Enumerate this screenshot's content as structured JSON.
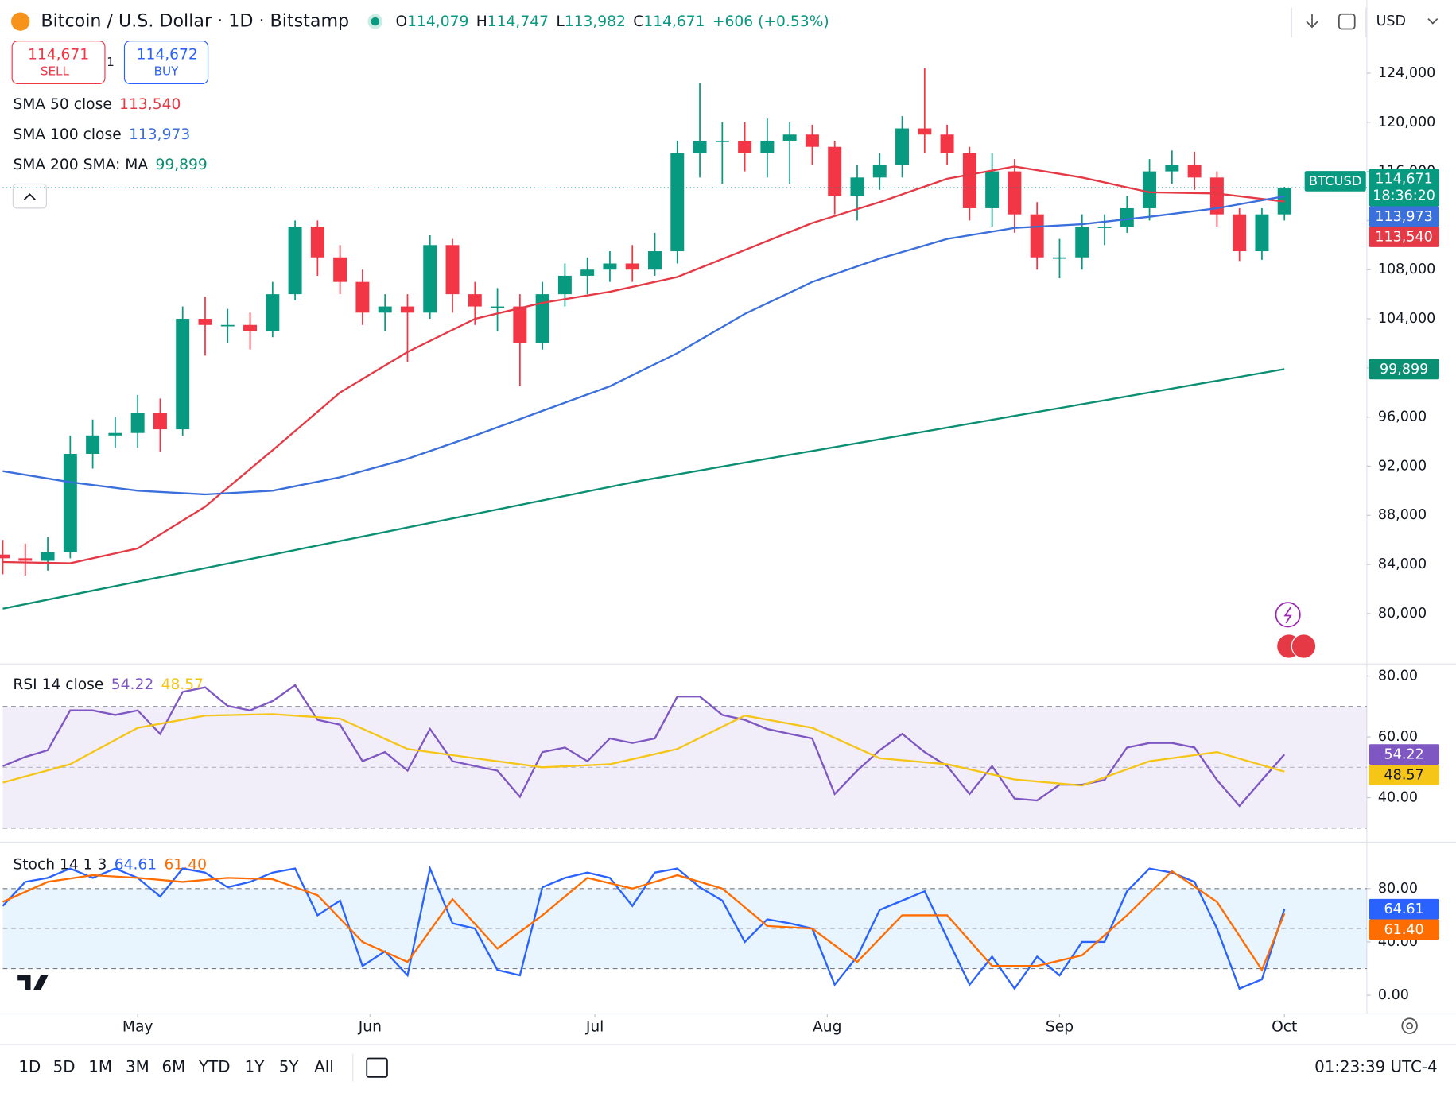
{
  "header": {
    "title": "Bitcoin / U.S. Dollar · 1D · Bitstamp",
    "ohlc": [
      {
        "label": "O",
        "value": "114,079"
      },
      {
        "label": "H",
        "value": "114,747"
      },
      {
        "label": "L",
        "value": "113,982"
      },
      {
        "label": "C",
        "value": "114,671"
      }
    ],
    "change": "+606 (+0.53%)",
    "currency": "USD"
  },
  "trade": {
    "sell_price": "114,671",
    "sell": "SELL",
    "spread": "1",
    "buy_price": "114,672",
    "buy": "BUY"
  },
  "timeframes": [
    "1D",
    "5D",
    "1M",
    "3M",
    "6M",
    "YTD",
    "1Y",
    "5Y",
    "All"
  ],
  "clock": "01:23:39 UTC-4",
  "chart_data": [
    {
      "type": "candlestick",
      "symbol": "BTCUSD",
      "countdown": "18:36:20",
      "last_label": "114,671",
      "up_color": "#089981",
      "down_color": "#f23645",
      "x": [
        0,
        3,
        6,
        9,
        12,
        15,
        18,
        21,
        24,
        27,
        30,
        33,
        36,
        39,
        42,
        45,
        48,
        51,
        54,
        57,
        60,
        63,
        66,
        69,
        72,
        75,
        78,
        81,
        84,
        87,
        90,
        93,
        96,
        99,
        102,
        105,
        108,
        111,
        114,
        117,
        120,
        123,
        126,
        129,
        132,
        135,
        138,
        141,
        144,
        147,
        150,
        153,
        156,
        159,
        162,
        165,
        168,
        171
      ],
      "open": [
        84800,
        84500,
        84300,
        85000,
        93000,
        94500,
        94700,
        96300,
        95000,
        104000,
        103500,
        103500,
        103000,
        106000,
        111500,
        109000,
        107000,
        104500,
        105000,
        104500,
        110000,
        106000,
        105000,
        105000,
        102000,
        106000,
        107500,
        108000,
        108500,
        108000,
        109500,
        117500,
        118500,
        118500,
        117500,
        118500,
        119000,
        118000,
        114000,
        115500,
        116500,
        119500,
        119000,
        117500,
        113000,
        116000,
        112500,
        109000,
        109000,
        111500,
        111500,
        113000,
        116000,
        116500,
        115500,
        112500,
        109500,
        112500
      ],
      "high": [
        86000,
        85700,
        86200,
        94500,
        95800,
        96000,
        97800,
        97500,
        105000,
        105800,
        104800,
        104500,
        107000,
        112000,
        112000,
        110000,
        108000,
        106000,
        106000,
        110800,
        110500,
        107000,
        106500,
        106000,
        107000,
        108500,
        109000,
        109500,
        110000,
        111000,
        118500,
        123200,
        120000,
        120000,
        120300,
        120000,
        119800,
        118500,
        116500,
        117500,
        120500,
        124400,
        119800,
        118000,
        117500,
        117000,
        113500,
        110500,
        112500,
        112500,
        114000,
        117000,
        117700,
        117600,
        116000,
        113000,
        113000,
        114747
      ],
      "low": [
        83200,
        83100,
        83500,
        84500,
        91800,
        93500,
        93500,
        93200,
        94500,
        101000,
        102000,
        101500,
        102500,
        105500,
        107500,
        106000,
        103500,
        103000,
        100500,
        104000,
        104500,
        103500,
        103000,
        98500,
        101500,
        105000,
        106000,
        107000,
        107000,
        107500,
        108500,
        115500,
        115000,
        116000,
        115500,
        115000,
        116500,
        112500,
        112000,
        114500,
        115500,
        117500,
        116500,
        112000,
        111500,
        111000,
        108000,
        107300,
        108000,
        110000,
        111000,
        112000,
        115000,
        114500,
        111500,
        108700,
        108800,
        112000
      ],
      "close": [
        84500,
        84300,
        85000,
        93000,
        94500,
        94700,
        96300,
        95000,
        104000,
        103500,
        103500,
        103000,
        106000,
        111500,
        109000,
        107000,
        104500,
        105000,
        104500,
        110000,
        106000,
        105000,
        105000,
        102000,
        106000,
        107500,
        108000,
        108500,
        108000,
        109500,
        117500,
        118500,
        118500,
        117500,
        118500,
        119000,
        118000,
        114000,
        115500,
        116500,
        119500,
        119000,
        117500,
        113000,
        116000,
        112500,
        109000,
        109000,
        111500,
        111500,
        113000,
        116000,
        116500,
        115500,
        112500,
        109500,
        112500,
        114671
      ],
      "xlim": [
        0,
        182
      ],
      "ylim": [
        75900,
        125400
      ],
      "yticks": [
        {
          "value": 80000,
          "label": "80,000"
        },
        {
          "value": 84000,
          "label": "84,000"
        },
        {
          "value": 88000,
          "label": "88,000"
        },
        {
          "value": 92000,
          "label": "92,000"
        },
        {
          "value": 96000,
          "label": "96,000"
        },
        {
          "value": 100000,
          "label": "100,000"
        },
        {
          "value": 104000,
          "label": "104,000"
        },
        {
          "value": 108000,
          "label": "108,000"
        },
        {
          "value": 112000,
          "label": "112,000"
        },
        {
          "value": 116000,
          "label": "116,000"
        },
        {
          "value": 120000,
          "label": "120,000"
        },
        {
          "value": 124000,
          "label": "124,000"
        }
      ],
      "series": [
        {
          "name": "SMA 50 close",
          "color": "#e53946",
          "last_label": "113,540",
          "x": [
            0,
            9,
            18,
            27,
            36,
            45,
            54,
            63,
            72,
            81,
            90,
            99,
            108,
            117,
            126,
            135,
            144,
            153,
            162,
            171
          ],
          "values": [
            84200,
            84100,
            85300,
            88700,
            93300,
            98000,
            101300,
            104000,
            105300,
            106200,
            107400,
            109600,
            111800,
            113500,
            115400,
            116400,
            115500,
            114300,
            114200,
            113540
          ]
        },
        {
          "name": "SMA 100 close",
          "color": "#3b6fdc",
          "last_label": "113,973",
          "x": [
            0,
            9,
            18,
            27,
            36,
            45,
            54,
            63,
            72,
            81,
            90,
            99,
            108,
            117,
            126,
            135,
            144,
            153,
            162,
            171
          ],
          "values": [
            91600,
            90700,
            90000,
            89700,
            90000,
            91100,
            92600,
            94500,
            96500,
            98500,
            101200,
            104400,
            107000,
            108900,
            110500,
            111400,
            111700,
            112300,
            113000,
            113973
          ]
        },
        {
          "name": "SMA 200 SMA: MA",
          "color": "#0b8f72",
          "last_label": "99,899",
          "x": [
            0,
            85,
            171
          ],
          "values": [
            80400,
            90800,
            99899
          ]
        }
      ]
    },
    {
      "type": "line",
      "title": "RSI 14 close",
      "xlim": [
        0,
        182
      ],
      "ylim": [
        26,
        83.7
      ],
      "band": [
        30,
        70
      ],
      "midline": 50,
      "band_color": "#7e57c2",
      "yticks": [
        {
          "value": 40,
          "label": "40.00"
        },
        {
          "value": 60,
          "label": "60.00"
        },
        {
          "value": 80,
          "label": "80.00"
        }
      ],
      "series": [
        {
          "color": "#7e57c2",
          "last_label": "54.22",
          "x": [
            0,
            3,
            6,
            9,
            12,
            15,
            18,
            21,
            24,
            27,
            30,
            33,
            36,
            39,
            42,
            45,
            48,
            51,
            54,
            57,
            60,
            63,
            66,
            69,
            72,
            75,
            78,
            81,
            84,
            87,
            90,
            93,
            96,
            99,
            102,
            105,
            108,
            111,
            114,
            117,
            120,
            123,
            126,
            129,
            132,
            135,
            138,
            141,
            144,
            147,
            150,
            153,
            156,
            159,
            162,
            165,
            168,
            171
          ],
          "values": [
            50.4,
            53.4,
            55.6,
            68.7,
            68.7,
            67.2,
            68.7,
            61,
            74.8,
            76.3,
            70.2,
            68.7,
            71.8,
            77,
            65.6,
            64,
            52,
            55,
            48.9,
            62.6,
            52,
            50.4,
            48.9,
            40.3,
            55,
            56.5,
            52,
            59.5,
            58,
            59.5,
            73.3,
            73.3,
            67.2,
            65.6,
            62.6,
            61,
            59.5,
            41.2,
            48.9,
            55.6,
            61,
            55,
            50.4,
            41.2,
            50.4,
            39.7,
            39.1,
            44.3,
            44.3,
            45.8,
            56.5,
            58,
            58,
            56.5,
            45.8,
            37.3,
            45.8,
            54.22
          ]
        },
        {
          "color": "#f5c518",
          "last_label": "48.57",
          "x": [
            0,
            9,
            18,
            27,
            36,
            45,
            54,
            63,
            72,
            81,
            90,
            99,
            108,
            117,
            126,
            135,
            144,
            153,
            162,
            171
          ],
          "values": [
            45,
            51,
            63,
            67,
            67.5,
            66,
            56,
            53,
            50,
            51,
            56,
            67,
            63,
            53,
            51,
            46,
            44,
            52,
            55,
            48.57
          ]
        }
      ]
    },
    {
      "type": "line",
      "title": "Stoch 14 1 3",
      "xlim": [
        0,
        182
      ],
      "ylim": [
        -12.5,
        112.7
      ],
      "band": [
        20,
        80
      ],
      "midline": 50,
      "band_color": "#2196f3",
      "yticks": [
        {
          "value": 0,
          "label": "0.00"
        },
        {
          "value": 40,
          "label": "40.00"
        },
        {
          "value": 80,
          "label": "80.00"
        }
      ],
      "xticks": [
        {
          "value": 18,
          "label": "May"
        },
        {
          "value": 49,
          "label": "Jun"
        },
        {
          "value": 79,
          "label": "Jul"
        },
        {
          "value": 110,
          "label": "Aug"
        },
        {
          "value": 141,
          "label": "Sep"
        },
        {
          "value": 171,
          "label": "Oct"
        }
      ],
      "series": [
        {
          "color": "#2962ff",
          "last_label": "64.61",
          "x": [
            0,
            3,
            6,
            9,
            12,
            15,
            18,
            21,
            24,
            27,
            30,
            33,
            36,
            39,
            42,
            45,
            48,
            51,
            54,
            57,
            60,
            63,
            66,
            69,
            72,
            75,
            78,
            81,
            84,
            87,
            90,
            93,
            96,
            99,
            102,
            105,
            108,
            111,
            114,
            117,
            120,
            123,
            126,
            129,
            132,
            135,
            138,
            141,
            144,
            147,
            150,
            153,
            156,
            159,
            162,
            165,
            168,
            171
          ],
          "values": [
            67,
            85,
            88,
            95,
            88,
            95,
            88,
            74,
            95,
            92,
            81,
            85,
            92,
            95,
            60,
            71,
            22,
            33,
            15,
            95,
            54,
            50,
            19,
            15,
            81,
            88,
            92,
            88,
            67,
            92,
            95,
            81,
            71,
            40,
            57,
            54,
            50,
            8,
            29,
            64,
            71,
            78,
            43,
            8,
            29,
            5,
            29,
            15,
            40,
            40,
            78,
            95,
            92,
            85,
            50,
            5,
            12,
            64.61
          ]
        },
        {
          "color": "#ff6d00",
          "last_label": "61.40",
          "x": [
            0,
            6,
            12,
            18,
            24,
            30,
            36,
            42,
            48,
            54,
            60,
            66,
            72,
            78,
            84,
            90,
            96,
            102,
            108,
            114,
            120,
            126,
            132,
            138,
            144,
            150,
            156,
            162,
            168,
            171
          ],
          "values": [
            70,
            85,
            90,
            88,
            85,
            88,
            87,
            75,
            40,
            25,
            72,
            35,
            60,
            88,
            80,
            90,
            80,
            52,
            50,
            25,
            60,
            60,
            22,
            22,
            30,
            60,
            93,
            70,
            19,
            61.4
          ]
        }
      ]
    }
  ]
}
